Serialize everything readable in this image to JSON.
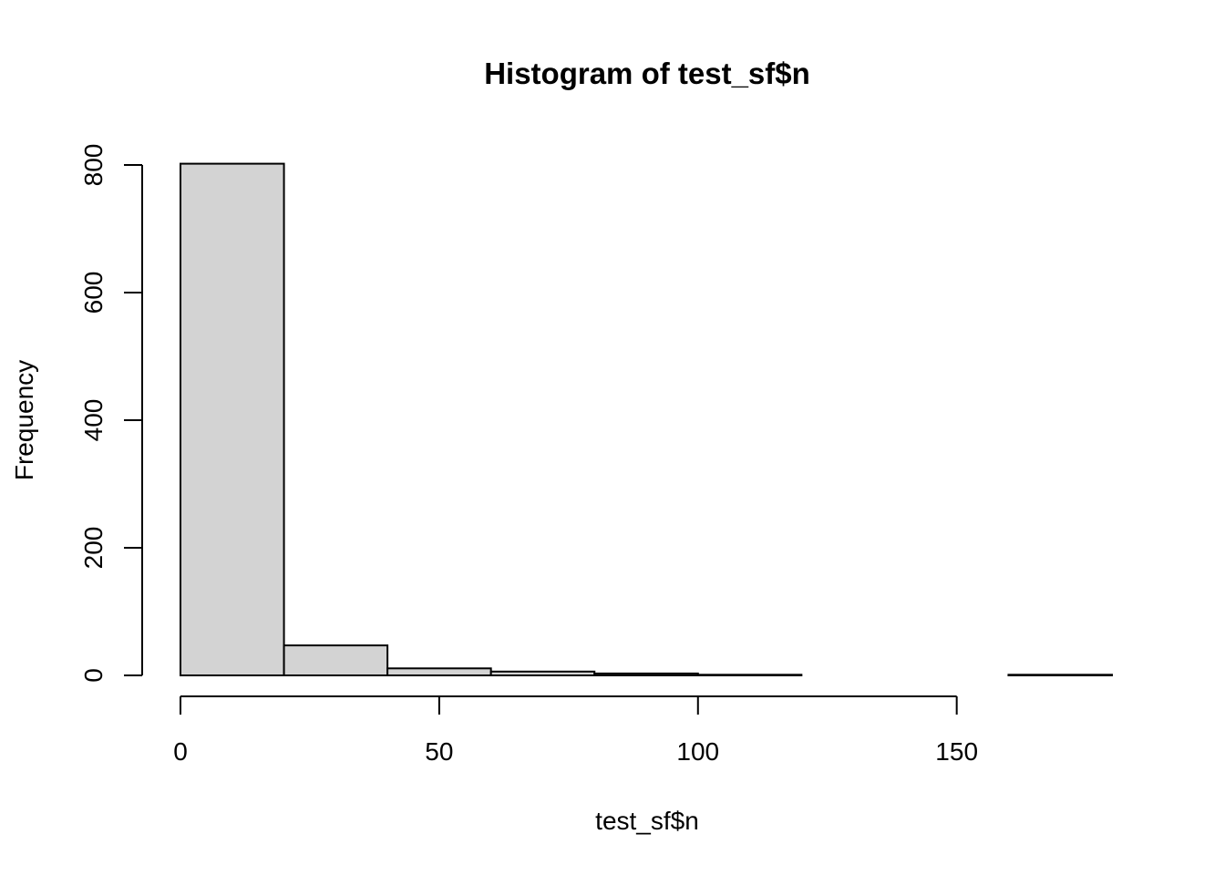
{
  "chart_data": {
    "type": "bar",
    "title": "Histogram of test_sf$n",
    "xlabel": "test_sf$n",
    "ylabel": "Frequency",
    "bins": [
      {
        "start": 0,
        "end": 20,
        "count": 802
      },
      {
        "start": 20,
        "end": 40,
        "count": 47
      },
      {
        "start": 40,
        "end": 60,
        "count": 11
      },
      {
        "start": 60,
        "end": 80,
        "count": 6
      },
      {
        "start": 80,
        "end": 100,
        "count": 3
      },
      {
        "start": 100,
        "end": 120,
        "count": 1
      },
      {
        "start": 120,
        "end": 140,
        "count": 0
      },
      {
        "start": 140,
        "end": 160,
        "count": 0
      },
      {
        "start": 160,
        "end": 180,
        "count": 1
      }
    ],
    "xlim": [
      0,
      180
    ],
    "ylim": [
      0,
      800
    ],
    "xticks": [
      0,
      50,
      100,
      150
    ],
    "yticks": [
      0,
      200,
      400,
      600,
      800
    ],
    "grid": false,
    "bar_color": "#d3d3d3",
    "bar_edge_color": "#000000"
  }
}
